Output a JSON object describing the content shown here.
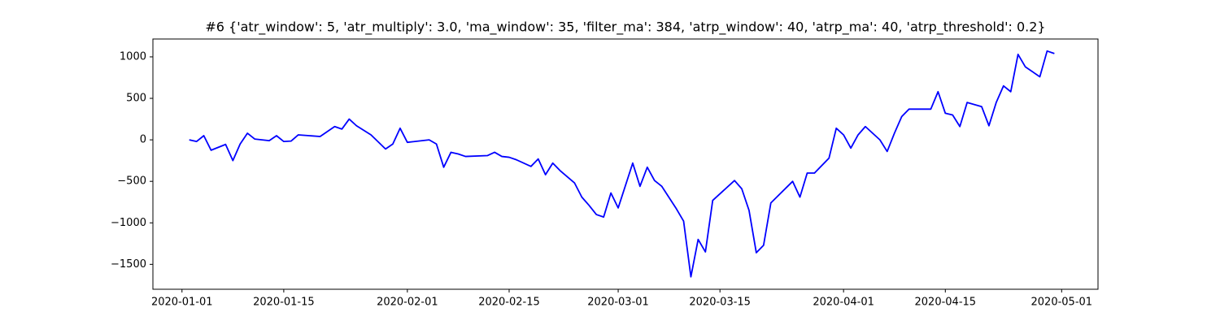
{
  "chart_data": {
    "type": "line",
    "title": "#6 {'atr_window': 5, 'atr_multiply': 3.0, 'ma_window': 35, 'filter_ma': 384, 'atrp_window': 40, 'atrp_ma': 40, 'atrp_threshold': 0.2}",
    "color": "#0000ff",
    "x": [
      "2020-01-02",
      "2020-01-03",
      "2020-01-04",
      "2020-01-05",
      "2020-01-07",
      "2020-01-08",
      "2020-01-09",
      "2020-01-10",
      "2020-01-11",
      "2020-01-13",
      "2020-01-14",
      "2020-01-15",
      "2020-01-16",
      "2020-01-17",
      "2020-01-20",
      "2020-01-21",
      "2020-01-22",
      "2020-01-23",
      "2020-01-24",
      "2020-01-25",
      "2020-01-27",
      "2020-01-29",
      "2020-01-30",
      "2020-01-31",
      "2020-02-01",
      "2020-02-04",
      "2020-02-05",
      "2020-02-06",
      "2020-02-07",
      "2020-02-08",
      "2020-02-09",
      "2020-02-12",
      "2020-02-13",
      "2020-02-14",
      "2020-02-15",
      "2020-02-16",
      "2020-02-18",
      "2020-02-19",
      "2020-02-20",
      "2020-02-21",
      "2020-02-22",
      "2020-02-24",
      "2020-02-25",
      "2020-02-26",
      "2020-02-27",
      "2020-02-28",
      "2020-02-29",
      "2020-03-01",
      "2020-03-03",
      "2020-03-04",
      "2020-03-05",
      "2020-03-06",
      "2020-03-07",
      "2020-03-09",
      "2020-03-10",
      "2020-03-11",
      "2020-03-12",
      "2020-03-13",
      "2020-03-14",
      "2020-03-17",
      "2020-03-18",
      "2020-03-19",
      "2020-03-20",
      "2020-03-21",
      "2020-03-22",
      "2020-03-25",
      "2020-03-26",
      "2020-03-27",
      "2020-03-28",
      "2020-03-30",
      "2020-03-31",
      "2020-04-01",
      "2020-04-02",
      "2020-04-03",
      "2020-04-04",
      "2020-04-06",
      "2020-04-07",
      "2020-04-08",
      "2020-04-09",
      "2020-04-10",
      "2020-04-13",
      "2020-04-14",
      "2020-04-15",
      "2020-04-16",
      "2020-04-17",
      "2020-04-18",
      "2020-04-20",
      "2020-04-21",
      "2020-04-22",
      "2020-04-23",
      "2020-04-24",
      "2020-04-25",
      "2020-04-26",
      "2020-04-28",
      "2020-04-29",
      "2020-04-30"
    ],
    "values": [
      0,
      -20,
      50,
      -125,
      -55,
      -250,
      -50,
      80,
      10,
      -10,
      50,
      -20,
      -15,
      60,
      40,
      100,
      160,
      130,
      250,
      170,
      60,
      -110,
      -50,
      140,
      -30,
      0,
      -50,
      -330,
      -150,
      -170,
      -200,
      -190,
      -150,
      -200,
      -210,
      -240,
      -320,
      -230,
      -420,
      -280,
      -370,
      -520,
      -690,
      -790,
      -900,
      -930,
      -640,
      -820,
      -280,
      -560,
      -330,
      -490,
      -560,
      -830,
      -980,
      -1650,
      -1200,
      -1350,
      -730,
      -490,
      -590,
      -850,
      -1360,
      -1270,
      -760,
      -500,
      -690,
      -400,
      -400,
      -220,
      140,
      60,
      -100,
      60,
      160,
      0,
      -140,
      80,
      280,
      370,
      370,
      580,
      320,
      300,
      160,
      450,
      400,
      170,
      450,
      650,
      580,
      1030,
      880,
      760,
      1070,
      1040
    ],
    "xlim": [
      "2019-12-28",
      "2020-05-06"
    ],
    "xticks": [
      "2020-01-01",
      "2020-01-15",
      "2020-02-01",
      "2020-02-15",
      "2020-03-01",
      "2020-03-15",
      "2020-04-01",
      "2020-04-15",
      "2020-05-01"
    ],
    "ylim": [
      -1800,
      1215
    ],
    "yticks": [
      {
        "value": -1500,
        "label": "−1500"
      },
      {
        "value": -1000,
        "label": "−1000"
      },
      {
        "value": -500,
        "label": "−500"
      },
      0,
      500,
      1000
    ],
    "grid": false
  }
}
